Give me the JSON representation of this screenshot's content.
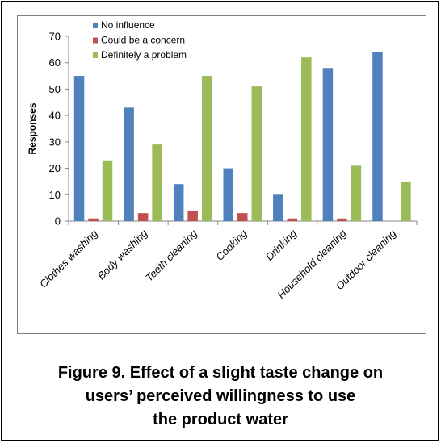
{
  "chart_data": {
    "type": "bar",
    "categories": [
      "Clothes washing",
      "Body washing",
      "Teeth cleaning",
      "Cooking",
      "Drinking",
      "Household cleaning",
      "Outdoor cleaning"
    ],
    "series": [
      {
        "name": "No influence",
        "color": "#4f81bd",
        "values": [
          55,
          43,
          14,
          20,
          10,
          58,
          64
        ]
      },
      {
        "name": "Could be a concern",
        "color": "#c0504d",
        "values": [
          1,
          3,
          4,
          3,
          1,
          1,
          0
        ]
      },
      {
        "name": "Definitely a problem",
        "color": "#9bbb59",
        "values": [
          23,
          29,
          55,
          51,
          62,
          21,
          15
        ]
      }
    ],
    "ylabel": "Responses",
    "xlabel": "",
    "ylim": [
      0,
      70
    ],
    "yticks": [
      0,
      10,
      20,
      30,
      40,
      50,
      60,
      70
    ],
    "grid": false,
    "legend_position": "top-left"
  },
  "caption": {
    "line1": "Figure 9. Effect of a slight taste change on",
    "line2": "users’ perceived willingness to use",
    "line3": "the product water"
  }
}
